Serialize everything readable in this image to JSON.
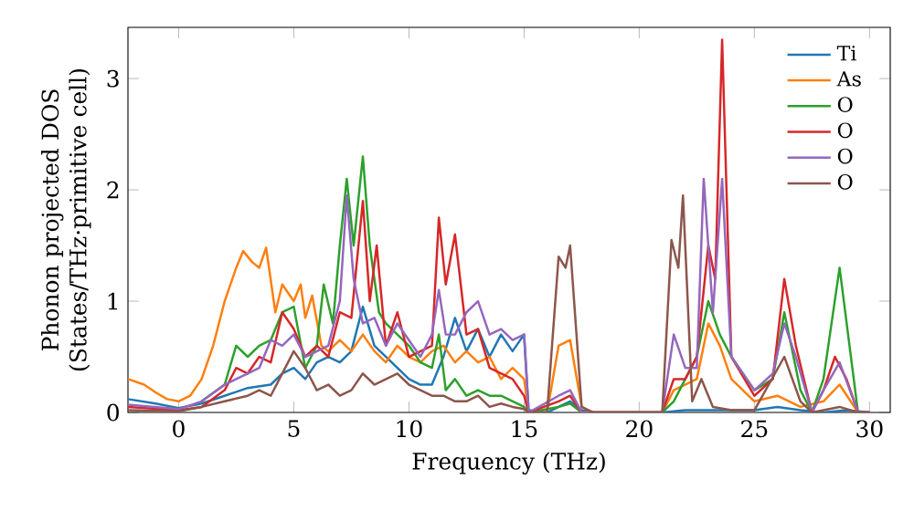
{
  "chart_data": {
    "type": "line",
    "xlabel": "Frequency (THz)",
    "ylabel": "Phonon projected DOS (States/THz·primitive cell)",
    "xlim": [
      -2.2,
      30.9
    ],
    "ylim": [
      0,
      3.46
    ],
    "xticks": [
      0,
      5,
      10,
      15,
      20,
      25,
      30
    ],
    "yticks": [
      0,
      1,
      2,
      3
    ],
    "legend": "top right",
    "grid": false,
    "marker": "none",
    "line_style": "solid",
    "series": [
      {
        "name": "Ti",
        "color": "#1f77b4",
        "x": [
          -2.2,
          -1,
          0,
          1,
          2,
          3,
          4,
          4.5,
          5,
          5.5,
          6,
          6.5,
          7,
          7.5,
          8,
          8.5,
          9,
          9.5,
          10,
          10.5,
          11,
          11.5,
          12,
          12.5,
          13,
          13.5,
          14,
          14.5,
          15,
          15.2,
          16,
          16.5,
          17,
          17.5,
          18,
          21,
          22,
          25,
          26,
          27,
          28,
          29,
          30
        ],
        "values": [
          0.12,
          0.08,
          0.04,
          0.08,
          0.15,
          0.22,
          0.25,
          0.35,
          0.4,
          0.3,
          0.45,
          0.5,
          0.45,
          0.55,
          0.95,
          0.6,
          0.5,
          0.4,
          0.3,
          0.25,
          0.25,
          0.5,
          0.85,
          0.55,
          0.75,
          0.5,
          0.7,
          0.55,
          0.7,
          0.02,
          0,
          0.05,
          0.1,
          0.02,
          0,
          0,
          0.02,
          0.02,
          0.05,
          0.02,
          0,
          0.02,
          0
        ]
      },
      {
        "name": "As",
        "color": "#ff7f0e",
        "x": [
          -2.2,
          -1.5,
          -1,
          -0.5,
          0,
          0.5,
          1,
          1.5,
          2,
          2.5,
          2.8,
          3.2,
          3.5,
          3.8,
          4.2,
          4.5,
          5,
          5.3,
          5.5,
          5.8,
          6.2,
          6.5,
          7,
          7.5,
          8,
          8.5,
          9,
          9.5,
          10,
          10.5,
          11,
          11.5,
          12,
          12.5,
          13,
          13.5,
          14,
          14.5,
          15,
          15.2,
          16,
          16.5,
          17,
          17.5,
          18,
          21,
          21.5,
          22,
          22.5,
          23,
          23.5,
          24,
          25,
          26,
          27,
          28,
          28.7,
          29.5,
          30
        ],
        "values": [
          0.3,
          0.25,
          0.18,
          0.12,
          0.1,
          0.15,
          0.3,
          0.6,
          1.0,
          1.3,
          1.45,
          1.35,
          1.3,
          1.48,
          0.9,
          1.15,
          1.0,
          1.15,
          0.85,
          1.05,
          0.6,
          0.55,
          0.65,
          0.55,
          0.7,
          0.55,
          0.45,
          0.6,
          0.5,
          0.45,
          0.55,
          0.6,
          0.45,
          0.55,
          0.45,
          0.5,
          0.3,
          0.4,
          0.3,
          0,
          0,
          0.6,
          0.65,
          0.05,
          0,
          0,
          0.2,
          0.25,
          0.3,
          0.8,
          0.6,
          0.3,
          0.1,
          0.15,
          0.05,
          0.1,
          0.25,
          0,
          0
        ]
      },
      {
        "name": "O",
        "color": "#2ca02c",
        "x": [
          1,
          2,
          2.5,
          3,
          3.5,
          4,
          4.5,
          5,
          5.5,
          6,
          6.3,
          6.7,
          7,
          7.3,
          7.6,
          8,
          8.3,
          8.7,
          9,
          9.5,
          10,
          10.5,
          11,
          11.3,
          11.6,
          12,
          12.5,
          13,
          13.5,
          14,
          14.5,
          15,
          15.2,
          16.5,
          17,
          17.5,
          21,
          21.5,
          22,
          22.5,
          23,
          23.5,
          24,
          25,
          25.8,
          26.3,
          27,
          27.5,
          28,
          28.7,
          29.5,
          30
        ],
        "values": [
          0.1,
          0.25,
          0.6,
          0.5,
          0.6,
          0.65,
          0.9,
          0.95,
          0.4,
          0.6,
          1.15,
          0.8,
          1.5,
          2.1,
          1.5,
          2.3,
          1.5,
          0.9,
          0.8,
          0.7,
          0.6,
          0.45,
          0.4,
          0.7,
          0.2,
          0.3,
          0.15,
          0.2,
          0.15,
          0.15,
          0.1,
          0.05,
          0,
          0.05,
          0.08,
          0,
          0,
          0.1,
          0.3,
          0.5,
          1.0,
          0.7,
          0.5,
          0.2,
          0.3,
          0.9,
          0.2,
          0,
          0.3,
          1.3,
          0,
          0
        ]
      },
      {
        "name": "O",
        "color": "#d62728",
        "x": [
          -2.2,
          0,
          1,
          2,
          2.5,
          3,
          3.5,
          4,
          4.5,
          5,
          5.5,
          6,
          6.5,
          7,
          7.5,
          8,
          8.3,
          8.6,
          9,
          9.5,
          10,
          10.5,
          11,
          11.3,
          11.6,
          12,
          12.5,
          13,
          13.5,
          14,
          14.5,
          15,
          15.2,
          16.5,
          17,
          17.5,
          21,
          21.5,
          22,
          22.5,
          23,
          23.3,
          23.6,
          24,
          25,
          25.8,
          26.3,
          26.8,
          27.5,
          28,
          28.5,
          29,
          29.5,
          30
        ],
        "values": [
          0.05,
          0.02,
          0.05,
          0.2,
          0.4,
          0.35,
          0.5,
          0.45,
          0.9,
          0.75,
          0.5,
          0.6,
          0.5,
          0.9,
          0.85,
          1.9,
          1.0,
          1.5,
          0.6,
          0.9,
          0.5,
          0.55,
          0.6,
          1.75,
          1.15,
          1.6,
          0.7,
          0.75,
          0.4,
          0.35,
          0.3,
          0.15,
          0,
          0.1,
          0.15,
          0,
          0,
          0.3,
          0.3,
          0.5,
          1.5,
          1.2,
          3.35,
          0.5,
          0.15,
          0.3,
          1.2,
          0.6,
          0,
          0.2,
          0.5,
          0.3,
          0,
          0
        ]
      },
      {
        "name": "O",
        "color": "#9467bd",
        "x": [
          -2.2,
          0,
          1,
          2,
          2.5,
          3,
          3.5,
          4,
          4.5,
          5,
          5.5,
          6,
          6.5,
          7,
          7.3,
          7.6,
          8,
          8.5,
          9,
          9.5,
          10,
          10.5,
          11,
          11.3,
          11.6,
          12,
          12.5,
          13,
          13.5,
          14,
          14.5,
          15,
          15.2,
          16.5,
          17,
          17.5,
          21,
          21.5,
          22,
          22.5,
          22.8,
          23.2,
          23.6,
          24,
          25,
          25.8,
          26.3,
          26.8,
          27.5,
          28,
          28.7,
          29.5,
          30
        ],
        "values": [
          0.07,
          0.03,
          0.1,
          0.25,
          0.3,
          0.35,
          0.4,
          0.65,
          0.6,
          0.7,
          0.5,
          0.55,
          0.6,
          1.0,
          1.95,
          1.2,
          0.8,
          0.85,
          0.6,
          0.8,
          0.65,
          0.5,
          0.7,
          1.1,
          0.7,
          0.7,
          0.9,
          1.0,
          0.7,
          0.75,
          0.65,
          0.7,
          0,
          0.15,
          0.2,
          0,
          0,
          0.7,
          0.4,
          0.4,
          2.1,
          0.9,
          2.1,
          0.5,
          0.2,
          0.35,
          0.8,
          0.5,
          0,
          0.2,
          0.45,
          0,
          0
        ]
      },
      {
        "name": "O",
        "color": "#8c564b",
        "x": [
          -2.2,
          0,
          1,
          2,
          3,
          3.5,
          4,
          4.5,
          5,
          5.5,
          6,
          6.5,
          7,
          7.5,
          8,
          8.5,
          9,
          9.5,
          10,
          10.5,
          11,
          11.5,
          12,
          12.5,
          13,
          13.5,
          14,
          14.5,
          15,
          15.2,
          16,
          16.5,
          16.8,
          17,
          17.5,
          18,
          21,
          21.4,
          21.7,
          21.9,
          22.3,
          22.7,
          23.2,
          24,
          25,
          26.3,
          27,
          27.5,
          28.7,
          29.5,
          30
        ],
        "values": [
          0.02,
          0.01,
          0.05,
          0.1,
          0.15,
          0.2,
          0.15,
          0.35,
          0.55,
          0.4,
          0.2,
          0.25,
          0.15,
          0.2,
          0.35,
          0.25,
          0.3,
          0.35,
          0.25,
          0.2,
          0.15,
          0.15,
          0.1,
          0.1,
          0.15,
          0.05,
          0.08,
          0.05,
          0.03,
          0,
          0,
          1.4,
          1.3,
          1.5,
          0.05,
          0,
          0,
          1.55,
          1.3,
          1.95,
          0.1,
          0.3,
          0.05,
          0.02,
          0.02,
          0.5,
          0.1,
          0,
          0.05,
          0,
          0
        ]
      }
    ]
  }
}
